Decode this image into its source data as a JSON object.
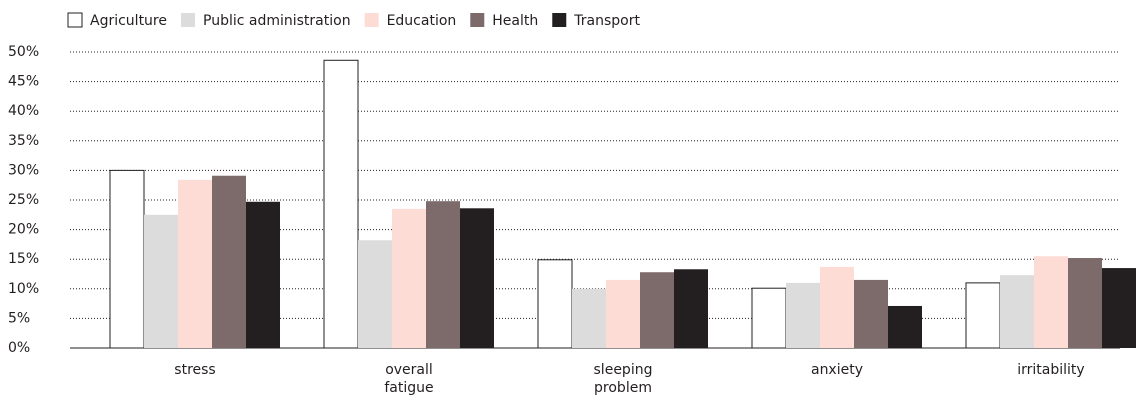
{
  "chart_data": {
    "type": "bar",
    "categories": [
      "stress",
      "overall fatigue",
      "sleeping problem",
      "anxiety",
      "irritability"
    ],
    "series": [
      {
        "name": "Agriculture",
        "color": "#ffffff",
        "values": [
          30,
          48.6,
          14.9,
          10.1,
          11
        ]
      },
      {
        "name": "Public administration",
        "color": "#dcdcdc",
        "values": [
          22.5,
          18.2,
          10,
          11,
          12.3
        ]
      },
      {
        "name": "Education",
        "color": "#fddcd6",
        "values": [
          28.4,
          23.5,
          11.5,
          13.7,
          15.5
        ]
      },
      {
        "name": "Health",
        "color": "#7d6b6b",
        "values": [
          29.1,
          24.8,
          12.8,
          11.5,
          15.2
        ]
      },
      {
        "name": "Transport",
        "color": "#231f20",
        "values": [
          24.7,
          23.6,
          13.3,
          7.1,
          13.5
        ]
      }
    ],
    "ylim": [
      0,
      50
    ],
    "yticks": [
      {
        "value": 0,
        "label": "0%"
      },
      {
        "value": 5,
        "label": "5%"
      },
      {
        "value": 10,
        "label": "10%"
      },
      {
        "value": 15,
        "label": "15%"
      },
      {
        "value": 20,
        "label": "20%"
      },
      {
        "value": 25,
        "label": "25%"
      },
      {
        "value": 30,
        "label": "30%"
      },
      {
        "value": 35,
        "label": "35%"
      },
      {
        "value": 40,
        "label": "40%"
      },
      {
        "value": 45,
        "label": "45%"
      },
      {
        "value": 50,
        "label": "50%"
      }
    ],
    "grid": true
  }
}
